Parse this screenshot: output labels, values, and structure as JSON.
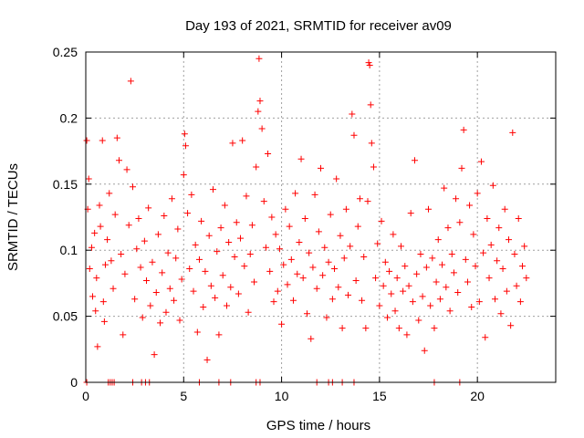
{
  "chart_data": {
    "type": "scatter",
    "title": "Day 193 of 2021, SRMTID for receiver av09",
    "xlabel": "GPS time / hours",
    "ylabel": "SRMTID / TECUs",
    "xlim": [
      0,
      24
    ],
    "ylim": [
      0,
      0.25
    ],
    "grid": true,
    "marker": "+",
    "marker_color": "#ff0000",
    "x_ticks": [
      0,
      5,
      10,
      15,
      20
    ],
    "x_tick_labels": [
      "0",
      "5",
      "10",
      "15",
      "20"
    ],
    "y_ticks": [
      0,
      0.05,
      0.1,
      0.15,
      0.2,
      0.25
    ],
    "y_tick_labels": [
      "0",
      "0.05",
      "0.1",
      "0.15",
      "0.2",
      "0.25"
    ],
    "series": [
      {
        "name": "SRMTID",
        "points": [
          [
            0.05,
            0.183
          ],
          [
            0.1,
            0.131
          ],
          [
            0.15,
            0.154
          ],
          [
            0.2,
            0.086
          ],
          [
            0.3,
            0.102
          ],
          [
            0.35,
            0.065
          ],
          [
            0.45,
            0.113
          ],
          [
            0.5,
            0.054
          ],
          [
            0.55,
            0.079
          ],
          [
            0.6,
            0.027
          ],
          [
            0.7,
            0.134
          ],
          [
            0.75,
            0.118
          ],
          [
            0.85,
            0.183
          ],
          [
            0.9,
            0.061
          ],
          [
            0.95,
            0.046
          ],
          [
            1.0,
            0.089
          ],
          [
            1.1,
            0.108
          ],
          [
            1.2,
            0.143
          ],
          [
            1.3,
            0.092
          ],
          [
            1.4,
            0.071
          ],
          [
            1.5,
            0.127
          ],
          [
            1.6,
            0.185
          ],
          [
            1.7,
            0.168
          ],
          [
            1.8,
            0.097
          ],
          [
            1.9,
            0.036
          ],
          [
            2.0,
            0.082
          ],
          [
            2.1,
            0.161
          ],
          [
            2.2,
            0.119
          ],
          [
            2.3,
            0.228
          ],
          [
            2.4,
            0.148
          ],
          [
            2.5,
            0.063
          ],
          [
            2.6,
            0.101
          ],
          [
            2.7,
            0.124
          ],
          [
            2.8,
            0.087
          ],
          [
            2.9,
            0.049
          ],
          [
            3.0,
            0.107
          ],
          [
            3.1,
            0.077
          ],
          [
            3.2,
            0.132
          ],
          [
            3.3,
            0.058
          ],
          [
            3.4,
            0.091
          ],
          [
            3.5,
            0.021
          ],
          [
            3.6,
            0.068
          ],
          [
            3.7,
            0.112
          ],
          [
            3.8,
            0.045
          ],
          [
            3.9,
            0.083
          ],
          [
            4.0,
            0.126
          ],
          [
            4.1,
            0.053
          ],
          [
            4.2,
            0.098
          ],
          [
            4.3,
            0.071
          ],
          [
            4.4,
            0.139
          ],
          [
            4.5,
            0.062
          ],
          [
            4.6,
            0.094
          ],
          [
            4.7,
            0.116
          ],
          [
            4.8,
            0.047
          ],
          [
            4.9,
            0.078
          ],
          [
            5.0,
            0.157
          ],
          [
            5.05,
            0.188
          ],
          [
            5.1,
            0.179
          ],
          [
            5.2,
            0.128
          ],
          [
            5.3,
            0.086
          ],
          [
            5.4,
            0.142
          ],
          [
            5.5,
            0.069
          ],
          [
            5.6,
            0.104
          ],
          [
            5.7,
            0.038
          ],
          [
            5.8,
            0.093
          ],
          [
            5.9,
            0.122
          ],
          [
            6.0,
            0.057
          ],
          [
            6.1,
            0.084
          ],
          [
            6.2,
            0.017
          ],
          [
            6.3,
            0.111
          ],
          [
            6.4,
            0.073
          ],
          [
            6.5,
            0.146
          ],
          [
            6.6,
            0.064
          ],
          [
            6.7,
            0.099
          ],
          [
            6.8,
            0.036
          ],
          [
            6.9,
            0.117
          ],
          [
            7.0,
            0.081
          ],
          [
            7.1,
            0.134
          ],
          [
            7.2,
            0.058
          ],
          [
            7.3,
            0.106
          ],
          [
            7.4,
            0.072
          ],
          [
            7.5,
            0.181
          ],
          [
            7.6,
            0.095
          ],
          [
            7.7,
            0.121
          ],
          [
            7.8,
            0.067
          ],
          [
            7.9,
            0.109
          ],
          [
            8.0,
            0.183
          ],
          [
            8.1,
            0.088
          ],
          [
            8.2,
            0.141
          ],
          [
            8.3,
            0.053
          ],
          [
            8.4,
            0.097
          ],
          [
            8.5,
            0.119
          ],
          [
            8.6,
            0.076
          ],
          [
            8.7,
            0.163
          ],
          [
            8.8,
            0.205
          ],
          [
            8.85,
            0.245
          ],
          [
            8.9,
            0.213
          ],
          [
            9.0,
            0.192
          ],
          [
            9.1,
            0.137
          ],
          [
            9.2,
            0.102
          ],
          [
            9.3,
            0.173
          ],
          [
            9.4,
            0.084
          ],
          [
            9.5,
            0.125
          ],
          [
            9.6,
            0.061
          ],
          [
            9.7,
            0.112
          ],
          [
            9.8,
            0.069
          ],
          [
            9.9,
            0.101
          ],
          [
            10.0,
            0.044
          ],
          [
            10.1,
            0.089
          ],
          [
            10.2,
            0.131
          ],
          [
            10.3,
            0.074
          ],
          [
            10.4,
            0.118
          ],
          [
            10.5,
            0.093
          ],
          [
            10.6,
            0.062
          ],
          [
            10.7,
            0.143
          ],
          [
            10.8,
            0.082
          ],
          [
            10.9,
            0.106
          ],
          [
            11.0,
            0.169
          ],
          [
            11.1,
            0.079
          ],
          [
            11.2,
            0.124
          ],
          [
            11.3,
            0.052
          ],
          [
            11.4,
            0.098
          ],
          [
            11.5,
            0.033
          ],
          [
            11.6,
            0.087
          ],
          [
            11.7,
            0.142
          ],
          [
            11.8,
            0.071
          ],
          [
            11.9,
            0.114
          ],
          [
            12.0,
            0.162
          ],
          [
            12.1,
            0.081
          ],
          [
            12.2,
            0.102
          ],
          [
            12.3,
            0.049
          ],
          [
            12.4,
            0.091
          ],
          [
            12.5,
            0.127
          ],
          [
            12.6,
            0.063
          ],
          [
            12.7,
            0.086
          ],
          [
            12.8,
            0.154
          ],
          [
            12.9,
            0.072
          ],
          [
            13.0,
            0.111
          ],
          [
            13.1,
            0.041
          ],
          [
            13.2,
            0.094
          ],
          [
            13.3,
            0.131
          ],
          [
            13.4,
            0.066
          ],
          [
            13.5,
            0.103
          ],
          [
            13.6,
            0.203
          ],
          [
            13.7,
            0.187
          ],
          [
            13.8,
            0.077
          ],
          [
            13.9,
            0.118
          ],
          [
            14.0,
            0.139
          ],
          [
            14.1,
            0.062
          ],
          [
            14.2,
            0.095
          ],
          [
            14.3,
            0.041
          ],
          [
            14.4,
            0.137
          ],
          [
            14.45,
            0.242
          ],
          [
            14.5,
            0.24
          ],
          [
            14.55,
            0.21
          ],
          [
            14.6,
            0.181
          ],
          [
            14.7,
            0.163
          ],
          [
            14.8,
            0.079
          ],
          [
            14.9,
            0.105
          ],
          [
            15.0,
            0.058
          ],
          [
            15.1,
            0.122
          ],
          [
            15.2,
            0.073
          ],
          [
            15.3,
            0.091
          ],
          [
            15.4,
            0.049
          ],
          [
            15.5,
            0.084
          ],
          [
            15.6,
            0.067
          ],
          [
            15.7,
            0.112
          ],
          [
            15.8,
            0.054
          ],
          [
            15.9,
            0.079
          ],
          [
            16.0,
            0.041
          ],
          [
            16.1,
            0.103
          ],
          [
            16.2,
            0.069
          ],
          [
            16.3,
            0.088
          ],
          [
            16.4,
            0.036
          ],
          [
            16.5,
            0.073
          ],
          [
            16.6,
            0.128
          ],
          [
            16.7,
            0.061
          ],
          [
            16.8,
            0.168
          ],
          [
            16.9,
            0.082
          ],
          [
            17.0,
            0.047
          ],
          [
            17.1,
            0.097
          ],
          [
            17.2,
            0.065
          ],
          [
            17.3,
            0.024
          ],
          [
            17.4,
            0.087
          ],
          [
            17.5,
            0.131
          ],
          [
            17.6,
            0.058
          ],
          [
            17.7,
            0.094
          ],
          [
            17.8,
            0.041
          ],
          [
            17.9,
            0.076
          ],
          [
            18.0,
            0.108
          ],
          [
            18.1,
            0.063
          ],
          [
            18.2,
            0.089
          ],
          [
            18.3,
            0.147
          ],
          [
            18.4,
            0.072
          ],
          [
            18.5,
            0.117
          ],
          [
            18.6,
            0.054
          ],
          [
            18.7,
            0.097
          ],
          [
            18.8,
            0.083
          ],
          [
            18.9,
            0.139
          ],
          [
            19.0,
            0.068
          ],
          [
            19.1,
            0.121
          ],
          [
            19.2,
            0.162
          ],
          [
            19.3,
            0.191
          ],
          [
            19.4,
            0.093
          ],
          [
            19.5,
            0.076
          ],
          [
            19.6,
            0.134
          ],
          [
            19.7,
            0.057
          ],
          [
            19.8,
            0.112
          ],
          [
            19.9,
            0.088
          ],
          [
            20.0,
            0.143
          ],
          [
            20.1,
            0.061
          ],
          [
            20.2,
            0.167
          ],
          [
            20.3,
            0.098
          ],
          [
            20.4,
            0.034
          ],
          [
            20.5,
            0.124
          ],
          [
            20.6,
            0.079
          ],
          [
            20.7,
            0.104
          ],
          [
            20.8,
            0.149
          ],
          [
            20.9,
            0.063
          ],
          [
            21.0,
            0.092
          ],
          [
            21.1,
            0.117
          ],
          [
            21.2,
            0.052
          ],
          [
            21.3,
            0.086
          ],
          [
            21.4,
            0.131
          ],
          [
            21.5,
            0.069
          ],
          [
            21.6,
            0.108
          ],
          [
            21.7,
            0.043
          ],
          [
            21.8,
            0.189
          ],
          [
            21.9,
            0.097
          ],
          [
            22.0,
            0.073
          ],
          [
            22.1,
            0.124
          ],
          [
            22.2,
            0.061
          ],
          [
            22.3,
            0.088
          ],
          [
            22.4,
            0.103
          ],
          [
            22.5,
            0.079
          ]
        ],
        "zero_markers_x": [
          0.05,
          1.15,
          1.25,
          1.35,
          1.45,
          2.4,
          2.85,
          3.05,
          3.25,
          5.8,
          6.8,
          7.4,
          8.7,
          8.9,
          11.8,
          12.4,
          12.6,
          13.1,
          13.7,
          17.8,
          19.1
        ]
      }
    ]
  }
}
